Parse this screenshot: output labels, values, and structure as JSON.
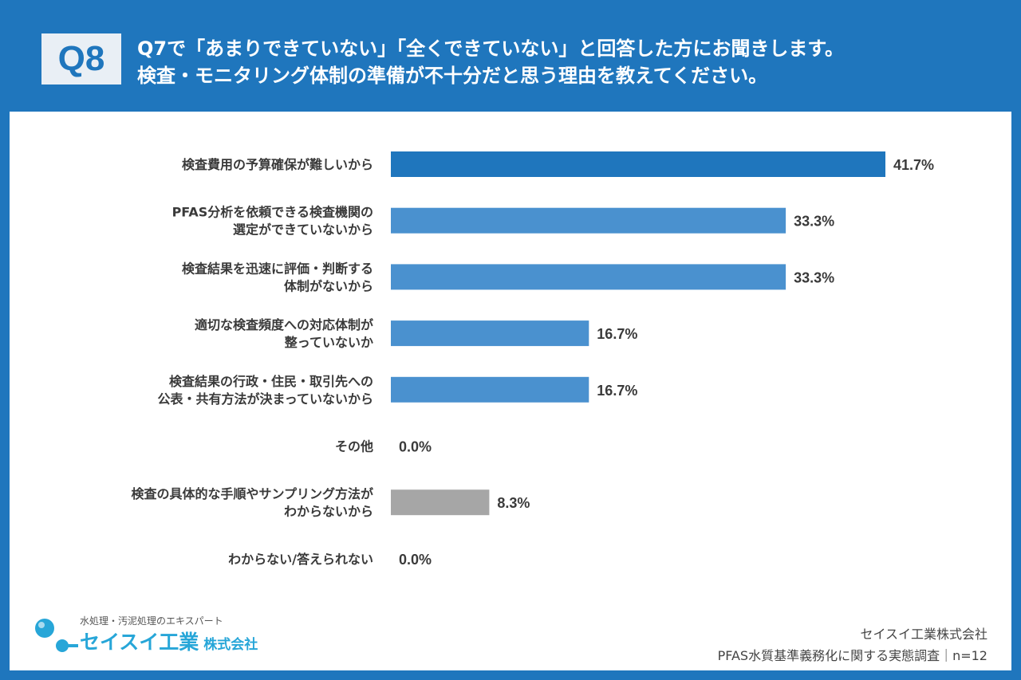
{
  "header": {
    "badge": "Q8",
    "line1": "Q7で「あまりできていない」「全くできていない」と回答した方にお聞きします。",
    "line2": "検査・モニタリング体制の準備が不十分だと思う理由を教えてください。"
  },
  "colors": {
    "background": "#1f76bd",
    "bar_primary": "#1f76bd",
    "bar_secondary": "#4a91cf",
    "bar_other": "#a6a6a6",
    "logo_accent": "#27a6d8"
  },
  "chart_data": {
    "type": "bar",
    "orientation": "horizontal",
    "xlim": [
      0,
      50
    ],
    "unit": "%",
    "categories": [
      [
        "検査費用の予算確保が難しいから"
      ],
      [
        "PFAS分析を依頼できる検査機関の",
        "選定ができていないから"
      ],
      [
        "検査結果を迅速に評価・判断する",
        "体制がないから"
      ],
      [
        "適切な検査頻度への対応体制が",
        "整っていないか"
      ],
      [
        "検査結果の行政・住民・取引先への",
        "公表・共有方法が決まっていないから"
      ],
      [
        "その他"
      ],
      [
        "検査の具体的な手順やサンプリング方法が",
        "わからないから"
      ],
      [
        "わからない/答えられない"
      ]
    ],
    "values": [
      41.7,
      33.3,
      33.3,
      16.7,
      16.7,
      0.0,
      8.3,
      0.0
    ],
    "value_labels": [
      "41.7%",
      "33.3%",
      "33.3%",
      "16.7%",
      "16.7%",
      "0.0%",
      "8.3%",
      "0.0%"
    ],
    "bar_color_keys": [
      "bar_primary",
      "bar_secondary",
      "bar_secondary",
      "bar_secondary",
      "bar_secondary",
      "bar_secondary",
      "bar_other",
      "bar_other"
    ]
  },
  "logo": {
    "tagline": "水処理・汚泥処理のエキスパート",
    "name": "セイスイ工業",
    "suffix": "株式会社"
  },
  "footer": {
    "company": "セイスイ工業株式会社",
    "survey": "PFAS水質基準義務化に関する実態調査｜n=12"
  }
}
